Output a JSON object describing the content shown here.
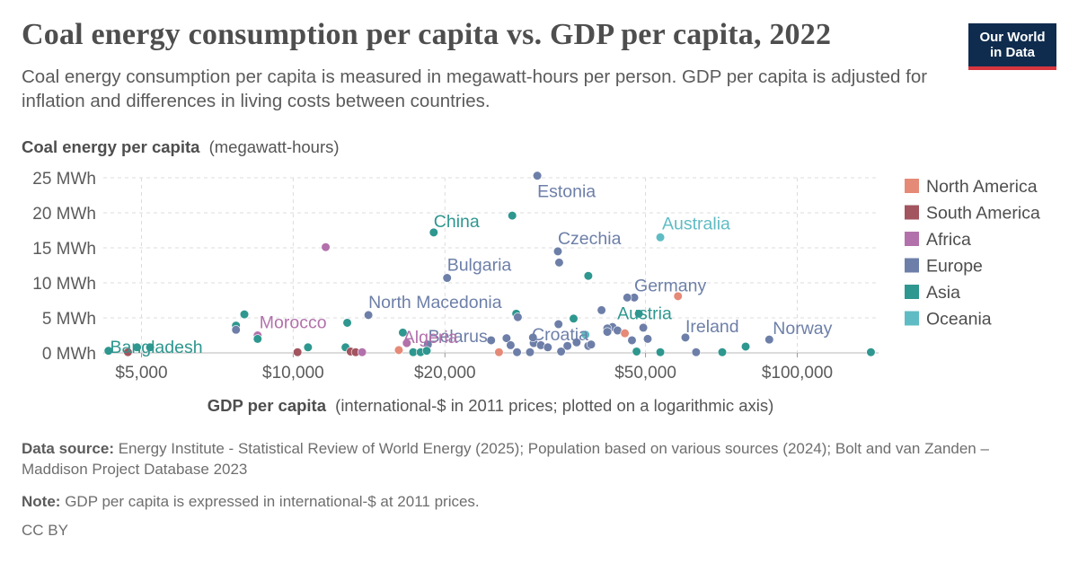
{
  "header": {
    "title": "Coal energy consumption per capita vs. GDP per capita, 2022",
    "subtitle": "Coal energy consumption per capita is measured in megawatt-hours per person. GDP per capita is adjusted for inflation and differences in living costs between countries.",
    "logo_line1": "Our World",
    "logo_line2": "in Data"
  },
  "footer": {
    "source_label": "Data source:",
    "source_text": "Energy Institute - Statistical Review of World Energy (2025); Population based on various sources (2024); Bolt and van Zanden – Maddison Project Database 2023",
    "note_label": "Note:",
    "note_text": "GDP per capita is expressed in international-$ at 2011 prices.",
    "license": "CC BY"
  },
  "colors": {
    "North America": "#e58a77",
    "South America": "#a2545f",
    "Africa": "#b271ab",
    "Europe": "#6d7fa8",
    "Asia": "#2e978f",
    "Oceania": "#5fbcc4"
  },
  "chart_data": {
    "type": "scatter",
    "title": "Coal energy consumption per capita vs. GDP per capita, 2022",
    "ylabel_bold": "Coal energy per capita",
    "ylabel_rest": "(megawatt-hours)",
    "xlabel_bold": "GDP per capita",
    "xlabel_rest": "(international-$ in 2011 prices; plotted on a logarithmic axis)",
    "x_scale": "log",
    "xlim": [
      4200,
      145000
    ],
    "ylim": [
      0,
      25
    ],
    "x_ticks": [
      {
        "v": 5000,
        "label": "$5,000"
      },
      {
        "v": 10000,
        "label": "$10,000"
      },
      {
        "v": 20000,
        "label": "$20,000"
      },
      {
        "v": 50000,
        "label": "$50,000"
      },
      {
        "v": 100000,
        "label": "$100,000"
      }
    ],
    "y_ticks": [
      {
        "v": 0,
        "label": "0 MWh"
      },
      {
        "v": 5,
        "label": "5 MWh"
      },
      {
        "v": 10,
        "label": "10 MWh"
      },
      {
        "v": 15,
        "label": "15 MWh"
      },
      {
        "v": 20,
        "label": "20 MWh"
      },
      {
        "v": 25,
        "label": "25 MWh"
      }
    ],
    "grid": true,
    "legend_position": "right",
    "legend": [
      "North America",
      "South America",
      "Africa",
      "Europe",
      "Asia",
      "Oceania"
    ],
    "points": [
      {
        "x": 30500,
        "y": 25.3,
        "region": "Europe",
        "label": "Estonia"
      },
      {
        "x": 19000,
        "y": 17.2,
        "region": "Asia",
        "label": "China"
      },
      {
        "x": 53500,
        "y": 16.5,
        "region": "Oceania",
        "label": "Australia"
      },
      {
        "x": 33500,
        "y": 14.5,
        "region": "Europe",
        "label": "Czechia"
      },
      {
        "x": 20200,
        "y": 10.7,
        "region": "Europe",
        "label": "Bulgaria"
      },
      {
        "x": 47500,
        "y": 7.9,
        "region": "Europe",
        "label": "Germany"
      },
      {
        "x": 14100,
        "y": 5.4,
        "region": "Europe",
        "label": "North Macedonia"
      },
      {
        "x": 48500,
        "y": 5.6,
        "region": "Asia",
        "label": "Austria"
      },
      {
        "x": 8500,
        "y": 2.5,
        "region": "Africa",
        "label": "Morocco"
      },
      {
        "x": 60000,
        "y": 2.2,
        "region": "Europe",
        "label": "Ireland"
      },
      {
        "x": 88000,
        "y": 1.9,
        "region": "Europe",
        "label": "Norway"
      },
      {
        "x": 24700,
        "y": 1.8,
        "region": "Europe",
        "label": "Belarus"
      },
      {
        "x": 30000,
        "y": 1.4,
        "region": "Europe",
        "label": "Croatia"
      },
      {
        "x": 16800,
        "y": 1.4,
        "region": "Africa",
        "label": "Algeria"
      },
      {
        "x": 4900,
        "y": 0.8,
        "region": "Asia",
        "label": "Bangladesh"
      },
      {
        "x": 27200,
        "y": 19.6,
        "region": "Asia"
      },
      {
        "x": 11600,
        "y": 15.1,
        "region": "Africa"
      },
      {
        "x": 38500,
        "y": 11.0,
        "region": "Asia"
      },
      {
        "x": 33700,
        "y": 12.9,
        "region": "Europe"
      },
      {
        "x": 40900,
        "y": 6.1,
        "region": "Europe"
      },
      {
        "x": 46000,
        "y": 7.9,
        "region": "Europe"
      },
      {
        "x": 58000,
        "y": 8.1,
        "region": "North America"
      },
      {
        "x": 27700,
        "y": 5.6,
        "region": "Asia"
      },
      {
        "x": 27900,
        "y": 5.1,
        "region": "Europe"
      },
      {
        "x": 36000,
        "y": 4.9,
        "region": "Asia"
      },
      {
        "x": 8000,
        "y": 5.5,
        "region": "Asia"
      },
      {
        "x": 7700,
        "y": 3.9,
        "region": "Asia"
      },
      {
        "x": 7700,
        "y": 3.3,
        "region": "Europe"
      },
      {
        "x": 12800,
        "y": 4.3,
        "region": "Asia"
      },
      {
        "x": 33600,
        "y": 4.1,
        "region": "Europe"
      },
      {
        "x": 49500,
        "y": 3.6,
        "region": "Europe"
      },
      {
        "x": 43000,
        "y": 3.7,
        "region": "Europe"
      },
      {
        "x": 42000,
        "y": 3.5,
        "region": "Europe"
      },
      {
        "x": 44000,
        "y": 3.2,
        "region": "Europe"
      },
      {
        "x": 45500,
        "y": 2.8,
        "region": "North America"
      },
      {
        "x": 42000,
        "y": 3.0,
        "region": "Europe"
      },
      {
        "x": 38000,
        "y": 2.6,
        "region": "Oceania"
      },
      {
        "x": 8500,
        "y": 2.0,
        "region": "Asia"
      },
      {
        "x": 16500,
        "y": 2.9,
        "region": "Asia"
      },
      {
        "x": 26500,
        "y": 2.1,
        "region": "Europe"
      },
      {
        "x": 29900,
        "y": 2.2,
        "region": "Europe"
      },
      {
        "x": 47000,
        "y": 1.8,
        "region": "Europe"
      },
      {
        "x": 50500,
        "y": 2.0,
        "region": "Europe"
      },
      {
        "x": 18500,
        "y": 1.2,
        "region": "Europe"
      },
      {
        "x": 27000,
        "y": 1.1,
        "region": "Europe"
      },
      {
        "x": 31000,
        "y": 1.1,
        "region": "Europe"
      },
      {
        "x": 32000,
        "y": 0.8,
        "region": "Europe"
      },
      {
        "x": 35000,
        "y": 1.0,
        "region": "Europe"
      },
      {
        "x": 36500,
        "y": 1.5,
        "region": "Europe"
      },
      {
        "x": 38500,
        "y": 1.0,
        "region": "Europe"
      },
      {
        "x": 39000,
        "y": 1.2,
        "region": "Europe"
      },
      {
        "x": 10700,
        "y": 0.8,
        "region": "Asia"
      },
      {
        "x": 12700,
        "y": 0.8,
        "region": "Asia"
      },
      {
        "x": 79000,
        "y": 0.9,
        "region": "Asia"
      },
      {
        "x": 4300,
        "y": 0.3,
        "region": "Asia"
      },
      {
        "x": 5200,
        "y": 0.8,
        "region": "Asia"
      },
      {
        "x": 4700,
        "y": 0.1,
        "region": "South America"
      },
      {
        "x": 10200,
        "y": 0.1,
        "region": "South America"
      },
      {
        "x": 13000,
        "y": 0.2,
        "region": "South America"
      },
      {
        "x": 13300,
        "y": 0.1,
        "region": "South America"
      },
      {
        "x": 13700,
        "y": 0.1,
        "region": "Africa"
      },
      {
        "x": 16200,
        "y": 0.4,
        "region": "North America"
      },
      {
        "x": 17300,
        "y": 0.1,
        "region": "Asia"
      },
      {
        "x": 17900,
        "y": 0.1,
        "region": "Asia"
      },
      {
        "x": 18400,
        "y": 0.3,
        "region": "Asia"
      },
      {
        "x": 25600,
        "y": 0.1,
        "region": "North America"
      },
      {
        "x": 27800,
        "y": 0.1,
        "region": "Europe"
      },
      {
        "x": 29500,
        "y": 0.1,
        "region": "Europe"
      },
      {
        "x": 34000,
        "y": 0.2,
        "region": "Europe"
      },
      {
        "x": 53500,
        "y": 0.1,
        "region": "Asia"
      },
      {
        "x": 48000,
        "y": 0.2,
        "region": "Asia"
      },
      {
        "x": 63000,
        "y": 0.1,
        "region": "Europe"
      },
      {
        "x": 71000,
        "y": 0.1,
        "region": "Asia"
      },
      {
        "x": 140000,
        "y": 0.1,
        "region": "Asia"
      }
    ]
  }
}
